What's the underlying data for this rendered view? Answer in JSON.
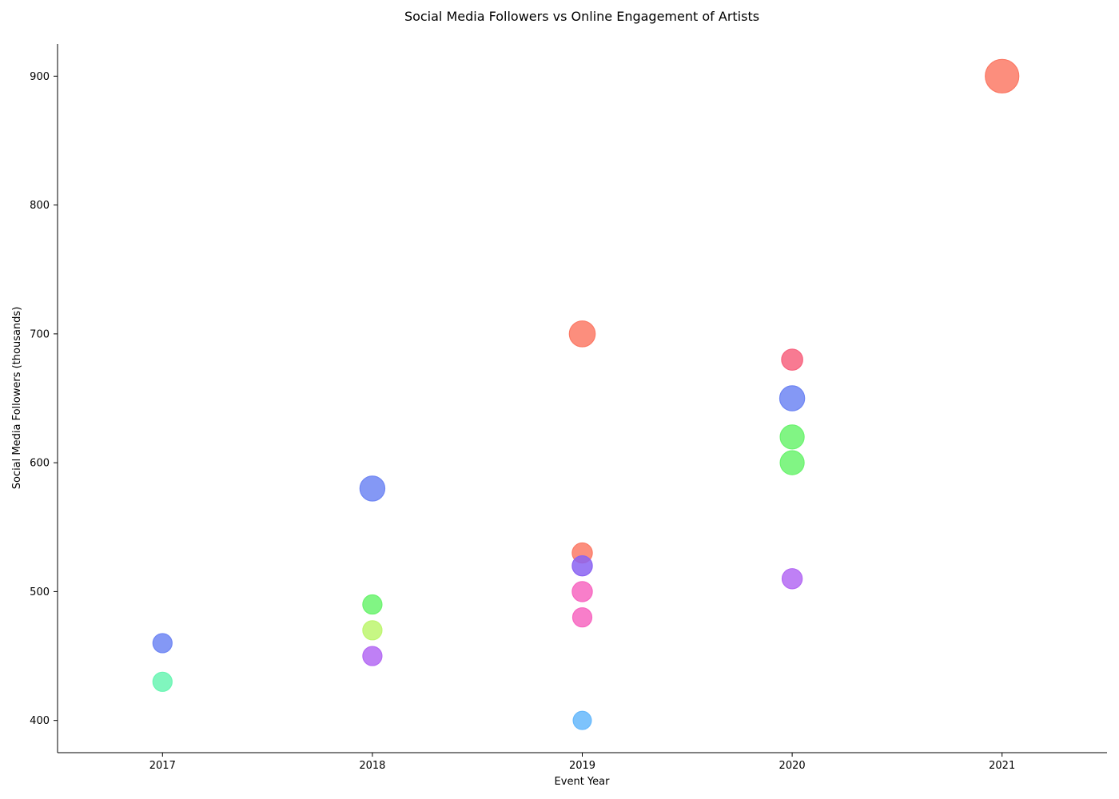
{
  "chart_data": {
    "type": "scatter",
    "title": "Social Media Followers vs Online Engagement of Artists",
    "xlabel": "Event Year",
    "ylabel": "Social Media Followers (thousands)",
    "xlim": [
      2016.5,
      2021.5
    ],
    "ylim": [
      375,
      925
    ],
    "x_ticks": [
      2017,
      2018,
      2019,
      2020,
      2021
    ],
    "y_ticks": [
      400,
      500,
      600,
      700,
      800,
      900
    ],
    "grid": false,
    "legend": "none",
    "points": [
      {
        "x": 2017,
        "y": 460,
        "size": 1.0,
        "color": "#6f86f3"
      },
      {
        "x": 2017,
        "y": 430,
        "size": 1.0,
        "color": "#6af5b3"
      },
      {
        "x": 2018,
        "y": 580,
        "size": 1.3,
        "color": "#6f86f3"
      },
      {
        "x": 2018,
        "y": 490,
        "size": 1.0,
        "color": "#6bf36f"
      },
      {
        "x": 2018,
        "y": 470,
        "size": 1.0,
        "color": "#bdf66f"
      },
      {
        "x": 2018,
        "y": 450,
        "size": 1.0,
        "color": "#b46af3"
      },
      {
        "x": 2019,
        "y": 700,
        "size": 1.35,
        "color": "#fb7a66"
      },
      {
        "x": 2019,
        "y": 530,
        "size": 1.05,
        "color": "#fb7a66"
      },
      {
        "x": 2019,
        "y": 520,
        "size": 1.05,
        "color": "#8a63f2"
      },
      {
        "x": 2019,
        "y": 500,
        "size": 1.05,
        "color": "#f767c1"
      },
      {
        "x": 2019,
        "y": 480,
        "size": 1.0,
        "color": "#f767c1"
      },
      {
        "x": 2019,
        "y": 400,
        "size": 0.95,
        "color": "#66b8fb"
      },
      {
        "x": 2020,
        "y": 680,
        "size": 1.1,
        "color": "#f7637f"
      },
      {
        "x": 2020,
        "y": 650,
        "size": 1.3,
        "color": "#6f86f3"
      },
      {
        "x": 2020,
        "y": 620,
        "size": 1.25,
        "color": "#6bf36f"
      },
      {
        "x": 2020,
        "y": 600,
        "size": 1.25,
        "color": "#6bf36f"
      },
      {
        "x": 2020,
        "y": 510,
        "size": 1.05,
        "color": "#b46af3"
      },
      {
        "x": 2021,
        "y": 900,
        "size": 1.75,
        "color": "#fb7a66"
      }
    ]
  }
}
